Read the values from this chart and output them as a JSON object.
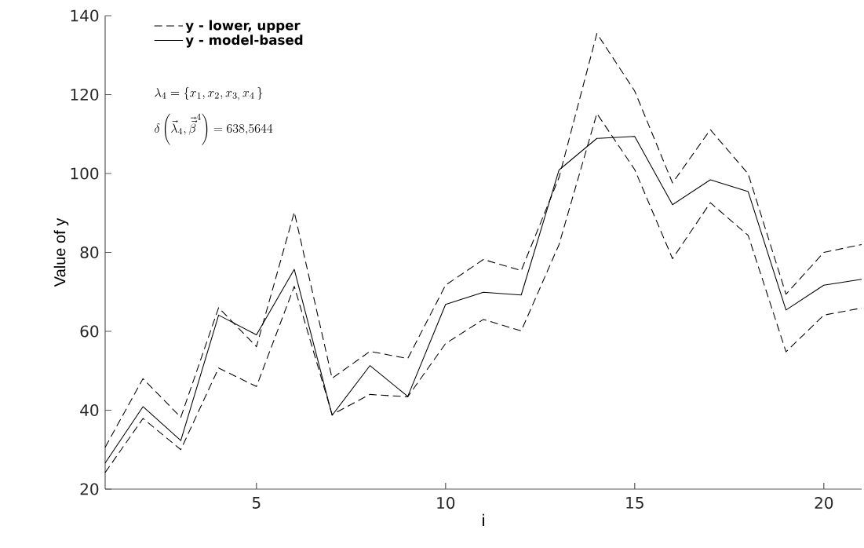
{
  "chart_data": {
    "type": "line",
    "xlabel": "i",
    "ylabel": "Value of y",
    "x": [
      1,
      2,
      3,
      4,
      5,
      6,
      7,
      8,
      9,
      10,
      11,
      12,
      13,
      14,
      15,
      16,
      17,
      18,
      19,
      20,
      21
    ],
    "series": [
      {
        "name": "y - lower, upper",
        "color": "#000000",
        "line_style": "dashed",
        "values": [
          30.6,
          48,
          38.2,
          66,
          56.1,
          90.2,
          48.1,
          54.9,
          53.1,
          71.7,
          78.2,
          75.4,
          99,
          135.5,
          120.9,
          97.6,
          111.1,
          99.9,
          69.4,
          80,
          82
        ]
      },
      {
        "color": "#000000",
        "line_style": "dashed",
        "values": [
          24.2,
          37.9,
          30,
          50.7,
          46,
          71.4,
          38.9,
          44,
          43.4,
          56.9,
          63,
          60.1,
          82,
          115.2,
          101,
          78.4,
          92.6,
          84.3,
          54.8,
          64.1,
          65.9
        ]
      },
      {
        "name": "y - model-based",
        "color": "#000000",
        "line_style": "solid",
        "values": [
          26.6,
          40.9,
          32.3,
          64.1,
          59.1,
          75.7,
          38.7,
          51.3,
          43.5,
          66.8,
          69.9,
          69.2,
          100.9,
          108.9,
          109.4,
          92.1,
          98.4,
          95.4,
          65.4,
          71.7,
          73.2
        ]
      }
    ],
    "xlim": [
      1,
      21
    ],
    "ylim": [
      20,
      140
    ],
    "xticks": [
      5,
      10,
      15,
      20
    ],
    "yticks": [
      20,
      40,
      60,
      80,
      100,
      120,
      140
    ],
    "legend": "top left",
    "annotations": [
      "\\lambda_4 = \\{x_1, x_2, x_{3,}\\, x_4\\,\\}",
      "\\delta\\left(\\vec{\\lambda}_4, \\vec{\\vec{\\beta}}^{4}\\right) = 638{,}5644"
    ]
  }
}
